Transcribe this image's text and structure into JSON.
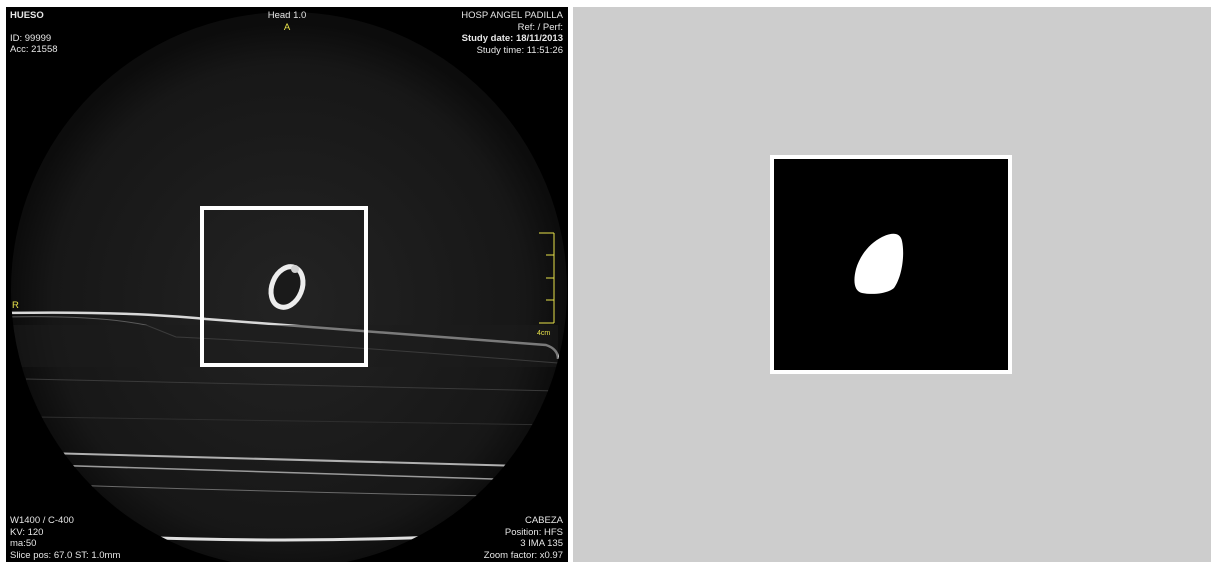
{
  "viewer": {
    "top_left": {
      "preset": "HUESO",
      "patient_id": "ID: 99999",
      "accession": "Acc: 21558"
    },
    "top_center": {
      "series": "Head 1.0",
      "orientation_top": "A"
    },
    "top_right": {
      "institution": "HOSP ANGEL PADILLA",
      "ref_perf": "Ref:  / Perf:",
      "study_date": "Study date: 18/11/2013",
      "study_time": "Study time: 11:51:26"
    },
    "orientation_left": "R",
    "scale_label": "4cm",
    "bottom_left": {
      "window": "W1400 / C-400",
      "kv": "KV: 120",
      "ma": "ma:50",
      "slice": "Slice pos: 67.0  ST: 1.0mm"
    },
    "bottom_right": {
      "body_part": "CABEZA",
      "position": "Position: HFS",
      "image_number": "3 IMA 135",
      "zoom": "Zoom factor: x0.97"
    },
    "overlay_color": "#e8e24a"
  },
  "mask_panel": {
    "background": "#cdcdcd"
  }
}
